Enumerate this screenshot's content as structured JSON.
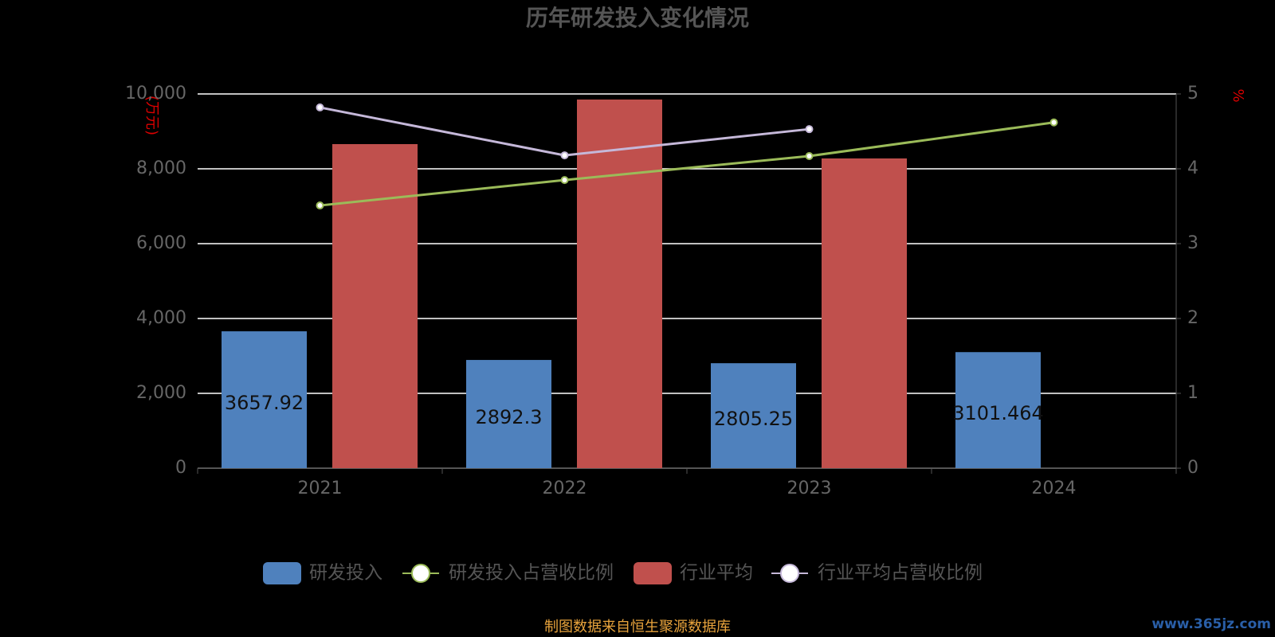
{
  "chart_data": {
    "type": "bar",
    "title": "历年研发投入变化情况",
    "categories": [
      "2021",
      "2022",
      "2023",
      "2024"
    ],
    "ylabel": "(万元)",
    "y2label": "%",
    "ylim": [
      0,
      10000
    ],
    "yticks": [
      0,
      {
        "value": 2000,
        "label": "2,000"
      },
      {
        "value": 4000,
        "label": "4,000"
      },
      {
        "value": 6000,
        "label": "6,000"
      },
      {
        "value": 8000,
        "label": "8,000"
      },
      {
        "value": 10000,
        "label": "10,000"
      }
    ],
    "y2lim": [
      0,
      5
    ],
    "y2ticks": [
      0,
      1,
      2,
      3,
      4,
      5
    ],
    "grid": true,
    "legend": "bottom",
    "series": [
      {
        "name": "研发投入",
        "type": "bar",
        "color": "#4f81bd",
        "values": [
          3657.92,
          2892.3,
          2805.25,
          3101.464
        ],
        "value_labels": [
          "3657.92",
          "2892.3",
          "2805.25",
          "3101.464"
        ]
      },
      {
        "name": "研发投入占营收比例",
        "type": "line",
        "axis": "y2",
        "color": "#9bbb59",
        "values": [
          3.51,
          3.85,
          4.17,
          4.62
        ]
      },
      {
        "name": "行业平均",
        "type": "bar",
        "color": "#c0504d",
        "values": [
          8660,
          9851,
          8277,
          null
        ]
      },
      {
        "name": "行业平均占营收比例",
        "type": "line",
        "axis": "y2",
        "color": "#c5b8d9",
        "values": [
          4.82,
          4.18,
          4.53,
          null
        ]
      }
    ],
    "source": "制图数据来自恒生聚源数据库",
    "watermark": "www.365jz.com"
  }
}
